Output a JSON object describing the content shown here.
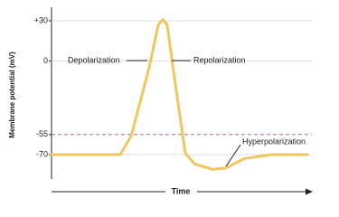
{
  "chart_data": {
    "type": "line",
    "y_label": "Membrane potential (mV)",
    "x_label": "Time",
    "x": [
      0,
      26.4,
      30.6,
      37.5,
      41,
      42.7,
      44.4,
      47.9,
      51.4,
      54.9,
      61.8,
      67,
      74,
      84.4,
      98.3
    ],
    "series": [
      {
        "color": "#f2c65e",
        "values": [
          -70,
          -70,
          -56,
          -5,
          27,
          31,
          27,
          -22,
          -69,
          -77,
          -81,
          -80,
          -73,
          -70,
          -70
        ]
      }
    ],
    "xlim": [
      0,
      100
    ],
    "ylim": [
      -85,
      40
    ],
    "yticks": [
      {
        "value": 30,
        "label": "+30"
      },
      0,
      -55,
      -70
    ],
    "grid": true,
    "threshold": {
      "value": -55,
      "color": "#a8689a"
    },
    "annotations": [
      {
        "text": "Depolarization"
      },
      {
        "text": "Repolarization"
      },
      {
        "text": "Hyperpolarization"
      }
    ]
  }
}
